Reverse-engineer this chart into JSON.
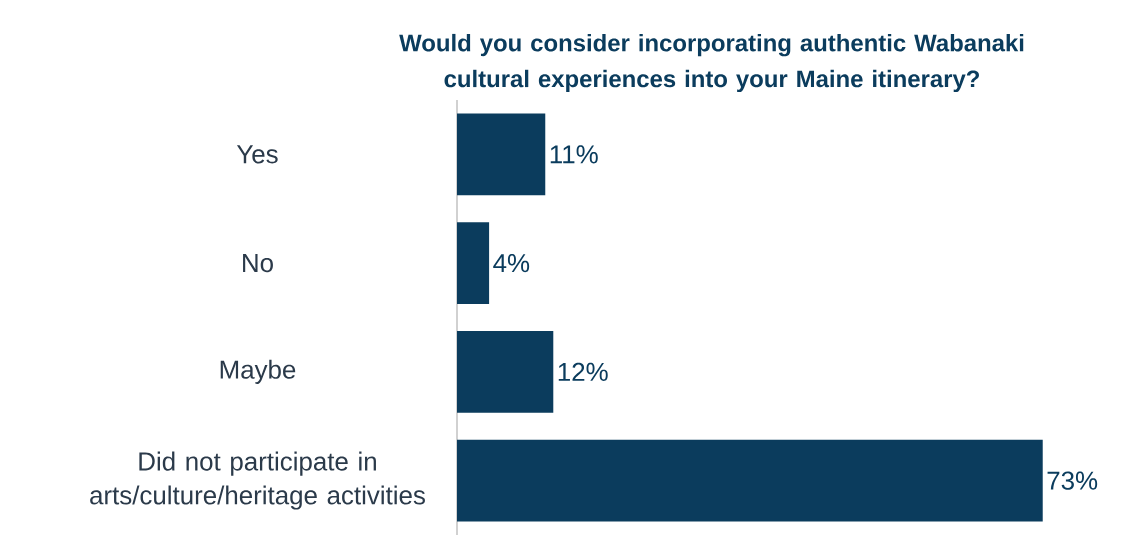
{
  "chart_data": {
    "type": "bar",
    "orientation": "horizontal",
    "title": "Would you consider incorporating authentic Wabanaki cultural experiences into your Maine itinerary?",
    "categories": [
      "Yes",
      "No",
      "Maybe",
      "Did not participate in arts/culture/heritage activities"
    ],
    "values": [
      11,
      4,
      12,
      73
    ],
    "value_labels": [
      "11%",
      "4%",
      "12%",
      "73%"
    ],
    "color": "#0b3c5d"
  }
}
